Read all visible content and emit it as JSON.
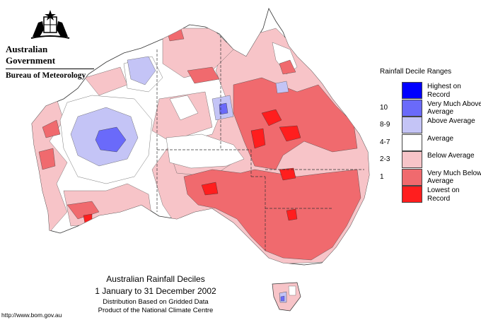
{
  "branding": {
    "government": "Australian Government",
    "bureau": "Bureau of Meteorology",
    "crest_icon": "coat-of-arms-icon"
  },
  "map": {
    "title": "Australian Rainfall Deciles",
    "period": "1 January to 31 December 2002",
    "subtitle_line1": "Distribution Based on Gridded Data",
    "subtitle_line2": "Product of the National Climate Centre",
    "source_url": "http://www.bom.gov.au"
  },
  "legend": {
    "title": "Rainfall Decile Ranges",
    "items": [
      {
        "range": "",
        "label": "Highest on Record",
        "color": "#0000ff"
      },
      {
        "range": "10",
        "label": "Very Much Above Average",
        "color": "#6a6afa"
      },
      {
        "range": "8-9",
        "label": "Above Average",
        "color": "#c4c4f6"
      },
      {
        "range": "4-7",
        "label": "Average",
        "color": "#ffffff"
      },
      {
        "range": "2-3",
        "label": "Below Average",
        "color": "#f7c4c8"
      },
      {
        "range": "1",
        "label": "Very Much Below Average",
        "color": "#f06a6e"
      },
      {
        "range": "",
        "label": "Lowest on Record",
        "color": "#ff1e1e"
      }
    ]
  }
}
